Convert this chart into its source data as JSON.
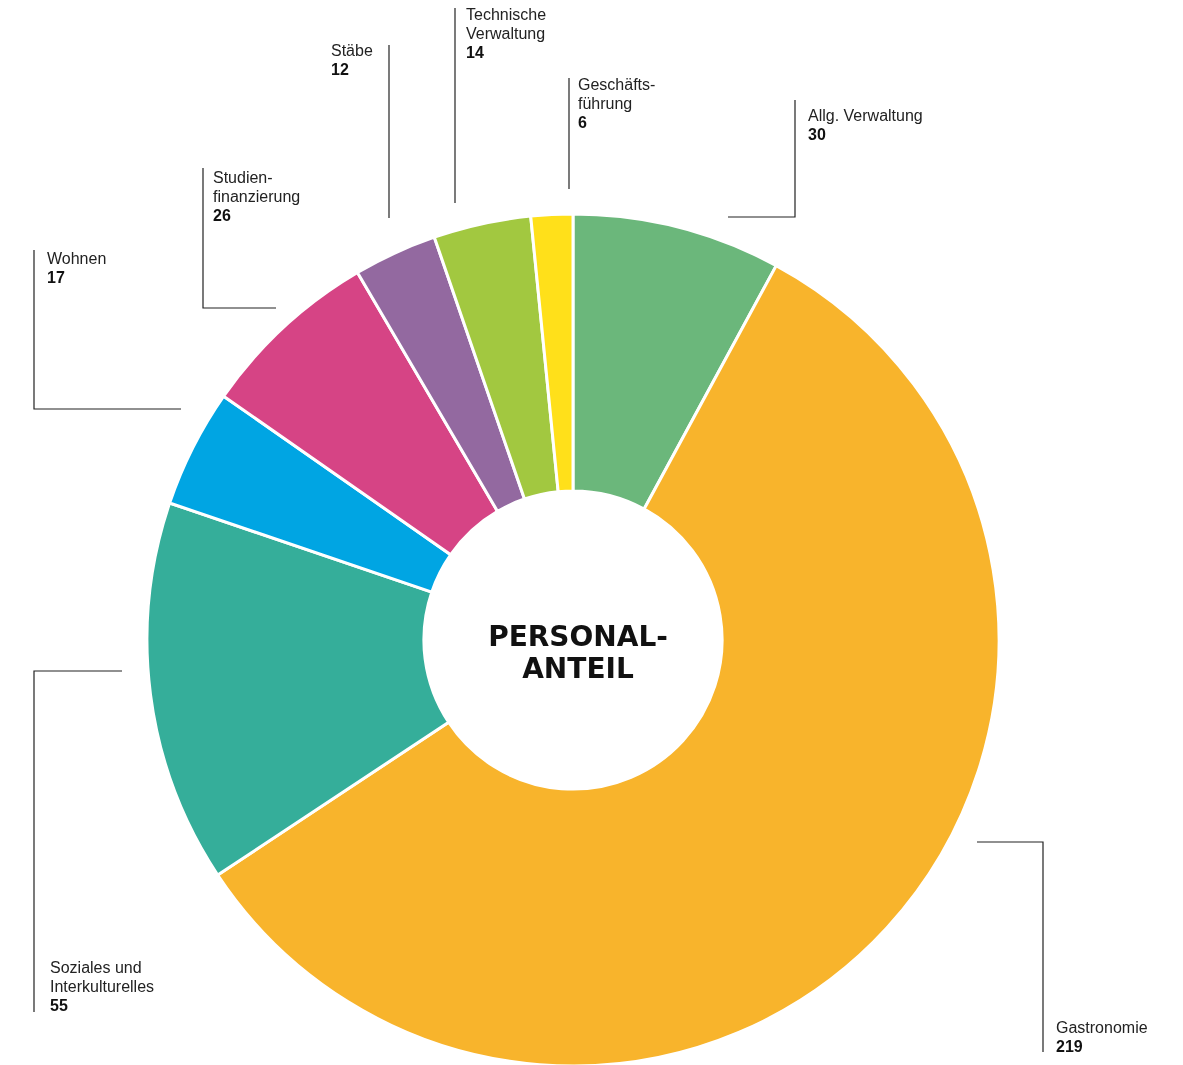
{
  "chart_data": {
    "type": "donut",
    "title": "PERSONAL-\nANTEIL",
    "categories": [
      "Allg. Verwaltung",
      "Gastronomie",
      "Soziales und\nInterkulturelles",
      "Wohnen",
      "Studien-\nfinanzierung",
      "Stäbe",
      "Technische\nVerwaltung",
      "Geschäfts-\nführung"
    ],
    "values": [
      30,
      219,
      55,
      17,
      26,
      12,
      14,
      6
    ],
    "colors": [
      "#6bb77b",
      "#f8b42c",
      "#35ae9a",
      "#00a5e3",
      "#d64485",
      "#9369a0",
      "#a2c840",
      "#ffe01a"
    ],
    "data_labels": true
  }
}
